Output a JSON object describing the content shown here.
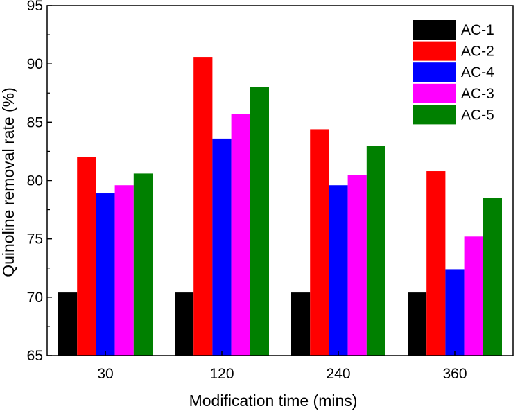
{
  "chart_data": {
    "type": "bar",
    "title": "",
    "xlabel": "Modification time (mins)",
    "ylabel": "Quinoline removal rate (%)",
    "categories": [
      "30",
      "120",
      "240",
      "360"
    ],
    "ylim": [
      65,
      95
    ],
    "yticks": [
      65,
      70,
      75,
      80,
      85,
      90,
      95
    ],
    "grid": false,
    "legend_position": "top-right",
    "series": [
      {
        "name": "AC-1",
        "color": "#000000",
        "values": [
          70.4,
          70.4,
          70.4,
          70.4
        ]
      },
      {
        "name": "AC-2",
        "color": "#ff0000",
        "values": [
          82.0,
          90.6,
          84.4,
          80.8
        ]
      },
      {
        "name": "AC-4",
        "color": "#0000ff",
        "values": [
          78.9,
          83.6,
          79.6,
          72.4
        ]
      },
      {
        "name": "AC-3",
        "color": "#ff00ff",
        "values": [
          79.6,
          85.7,
          80.5,
          75.2
        ]
      },
      {
        "name": "AC-5",
        "color": "#008000",
        "values": [
          80.6,
          88.0,
          83.0,
          78.5
        ]
      }
    ]
  }
}
